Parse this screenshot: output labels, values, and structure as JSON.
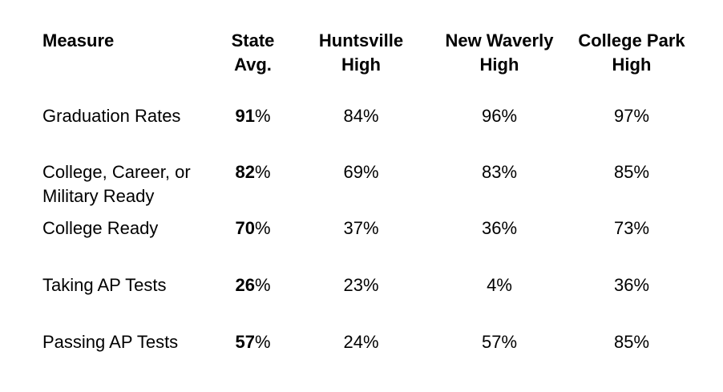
{
  "colors": {
    "background": "#ffffff",
    "text": "#000000"
  },
  "chart_data": {
    "type": "table",
    "title": "",
    "units": "percent",
    "columns": [
      "Measure",
      "State Avg.",
      "Huntsville High",
      "New Waverly High",
      "College Park High"
    ],
    "rows": [
      {
        "measure": "Graduation Rates",
        "state_avg": 91,
        "huntsville_high": 84,
        "new_waverly_high": 96,
        "college_park_high": 97
      },
      {
        "measure": "College, Career, or Military Ready",
        "state_avg": 82,
        "huntsville_high": 69,
        "new_waverly_high": 83,
        "college_park_high": 85
      },
      {
        "measure": "College Ready",
        "state_avg": 70,
        "huntsville_high": 37,
        "new_waverly_high": 36,
        "college_park_high": 73
      },
      {
        "measure": "Taking AP Tests",
        "state_avg": 26,
        "huntsville_high": 23,
        "new_waverly_high": 4,
        "college_park_high": 36
      },
      {
        "measure": "Passing AP Tests",
        "state_avg": 57,
        "huntsville_high": 24,
        "new_waverly_high": 57,
        "college_park_high": 85
      }
    ]
  },
  "table": {
    "columns": [
      {
        "lines": [
          "Measure"
        ]
      },
      {
        "lines": [
          "State",
          "Avg."
        ]
      },
      {
        "lines": [
          "Huntsville",
          "High"
        ]
      },
      {
        "lines": [
          "New Waverly",
          "High"
        ]
      },
      {
        "lines": [
          "College Park",
          "High"
        ]
      }
    ],
    "rows": [
      {
        "measure_lines": [
          "Graduation Rates"
        ],
        "state": {
          "num": "91",
          "unit": "%"
        },
        "huntsville": "84%",
        "new_waverly": "96%",
        "college_park": "97%"
      },
      {
        "measure_lines": [
          "College, Career, or",
          "Military Ready"
        ],
        "state": {
          "num": "82",
          "unit": "%"
        },
        "huntsville": "69%",
        "new_waverly": "83%",
        "college_park": "85%"
      },
      {
        "measure_lines": [
          "College Ready"
        ],
        "state": {
          "num": "70",
          "unit": "%"
        },
        "huntsville": "37%",
        "new_waverly": "36%",
        "college_park": "73%"
      },
      {
        "measure_lines": [
          "Taking AP Tests"
        ],
        "state": {
          "num": "26",
          "unit": "%"
        },
        "huntsville": "23%",
        "new_waverly": "4%",
        "college_park": "36%"
      },
      {
        "measure_lines": [
          "Passing AP Tests"
        ],
        "state": {
          "num": "57",
          "unit": "%"
        },
        "huntsville": "24%",
        "new_waverly": "57%",
        "college_park": "85%"
      }
    ]
  }
}
